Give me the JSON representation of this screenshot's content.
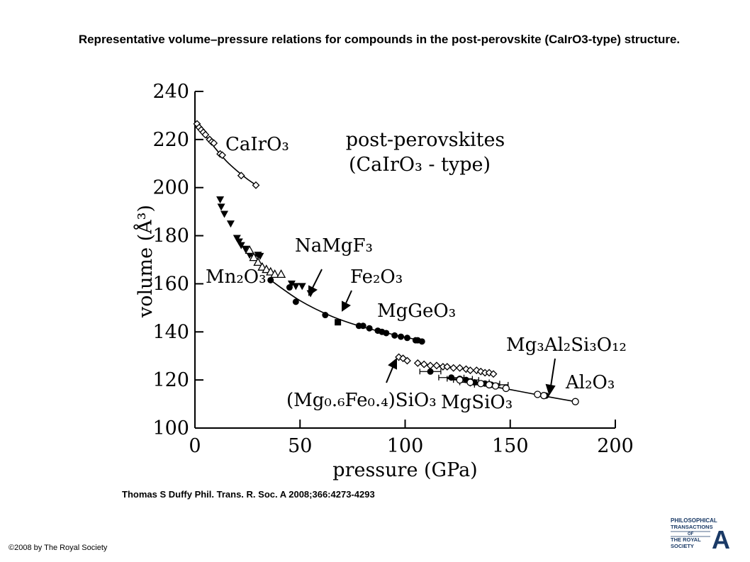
{
  "title": "Representative volume–pressure relations for compounds in the post-perovskite (CaIrO3-type) structure.",
  "citation": "Thomas S Duffy Phil. Trans. R. Soc. A 2008;366:4273-4293",
  "copyright": "©2008 by The Royal Society",
  "logo": {
    "lines": [
      "PHILOSOPHICAL",
      "TRANSACTIONS",
      "OF",
      "THE ROYAL",
      "SOCIETY"
    ],
    "letter": "A"
  },
  "chart_data": {
    "type": "scatter",
    "xlabel": "pressure (GPa)",
    "ylabel": "volume (Å³)",
    "xlim": [
      0,
      200
    ],
    "ylim": [
      100,
      240
    ],
    "xticks": [
      0,
      50,
      100,
      150,
      200
    ],
    "yticks": [
      100,
      120,
      140,
      160,
      180,
      200,
      220,
      240
    ],
    "grid": false,
    "legend": "none",
    "inset_label": {
      "line1": "post-perovskites",
      "line2": "(CaIrO₃ - type)"
    },
    "series": [
      {
        "name": "CaIrO₃",
        "marker": "diamond-open",
        "x": [
          1,
          2,
          3,
          4,
          5,
          7,
          8,
          9,
          12,
          13,
          22,
          29
        ],
        "y": [
          226.5,
          225,
          224,
          223,
          222,
          220,
          219,
          218.5,
          214,
          213.5,
          205,
          201
        ],
        "curve": {
          "x": [
            0,
            5,
            10,
            15,
            20,
            25,
            30
          ],
          "y": [
            226.5,
            221.5,
            216,
            211,
            207,
            203.5,
            200.5
          ]
        }
      },
      {
        "name": "NaMgF₃",
        "marker": "triangle-down-filled",
        "x": [
          12,
          12.5,
          14,
          17,
          20,
          21,
          22,
          24,
          26,
          28,
          30,
          31,
          46,
          48,
          51,
          55
        ],
        "y": [
          195,
          192,
          189,
          185,
          179,
          177.5,
          176,
          174.5,
          172,
          171,
          172,
          171.5,
          160,
          159,
          159,
          156
        ]
      },
      {
        "name": "Mn₂O₃",
        "marker": "triangle-up-open",
        "x": [
          26,
          28,
          30,
          32,
          34,
          36,
          38,
          41
        ],
        "y": [
          174,
          171,
          169,
          167,
          166,
          165,
          164,
          164
        ]
      },
      {
        "name": "Fe₂O₃",
        "marker": "square-filled",
        "x": [
          68
        ],
        "y": [
          144
        ]
      },
      {
        "name": "MgGeO₃",
        "marker": "circle-filled",
        "x": [
          36,
          45,
          48,
          62,
          78,
          80,
          83,
          87,
          89,
          91,
          95,
          98,
          101,
          105,
          106,
          108
        ],
        "y": [
          161.5,
          158.5,
          152.5,
          147,
          142.5,
          142.5,
          141.5,
          140.5,
          140,
          139.5,
          138.5,
          138,
          137.5,
          136.5,
          136.5,
          136
        ],
        "curve": {
          "x": [
            36,
            50,
            65,
            80,
            95,
            108
          ],
          "y": [
            161.5,
            153,
            146.5,
            142,
            138.8,
            136.3
          ]
        }
      },
      {
        "name": "(Mg₀.₆Fe₀.₄)SiO₃",
        "marker": "diamond-open",
        "x": [
          97,
          99,
          101,
          106,
          109,
          112,
          115,
          118,
          120,
          123,
          126,
          129,
          131,
          134,
          136,
          138,
          140,
          142
        ],
        "y": [
          129.5,
          129,
          128,
          127,
          126.5,
          126,
          126,
          125.5,
          125.5,
          125,
          125,
          124.5,
          124,
          124,
          123.5,
          123,
          123,
          122.5
        ]
      },
      {
        "name": "MgSiO₃",
        "marker": "circle-filled",
        "x": [
          112,
          122,
          126,
          129,
          133,
          138,
          141
        ],
        "y": [
          123.5,
          121,
          120.5,
          120,
          119,
          118.5,
          118
        ],
        "xerr": [
          5,
          6,
          6,
          6,
          7,
          7,
          8
        ]
      },
      {
        "name": "Mg₃Al₂Si₃O₁₂",
        "marker": "circle-filled",
        "x": [
          167
        ],
        "y": [
          113.5
        ]
      },
      {
        "name": "Al₂O₃",
        "marker": "circle-open",
        "x": [
          126,
          131,
          136,
          140,
          143,
          148,
          163,
          166,
          181
        ],
        "y": [
          120,
          119,
          118.5,
          118,
          117.5,
          116.5,
          114,
          113.5,
          111
        ],
        "curve": {
          "x": [
            120,
            135,
            150,
            165,
            181
          ],
          "y": [
            121,
            118.3,
            116,
            113.5,
            111
          ]
        }
      }
    ],
    "labels": {
      "cairo3": "CaIrO₃",
      "namgf3": "NaMgF₃",
      "mn2o3": "Mn₂O₃",
      "fe2o3": "Fe₂O₃",
      "mggeo3": "MgGeO₃",
      "mgfesio3": "(Mg₀.₆Fe₀.₄)SiO₃",
      "mgsio3": "MgSiO₃",
      "garnet": "Mg₃Al₂Si₃O₁₂",
      "al2o3": "Al₂O₃"
    }
  }
}
